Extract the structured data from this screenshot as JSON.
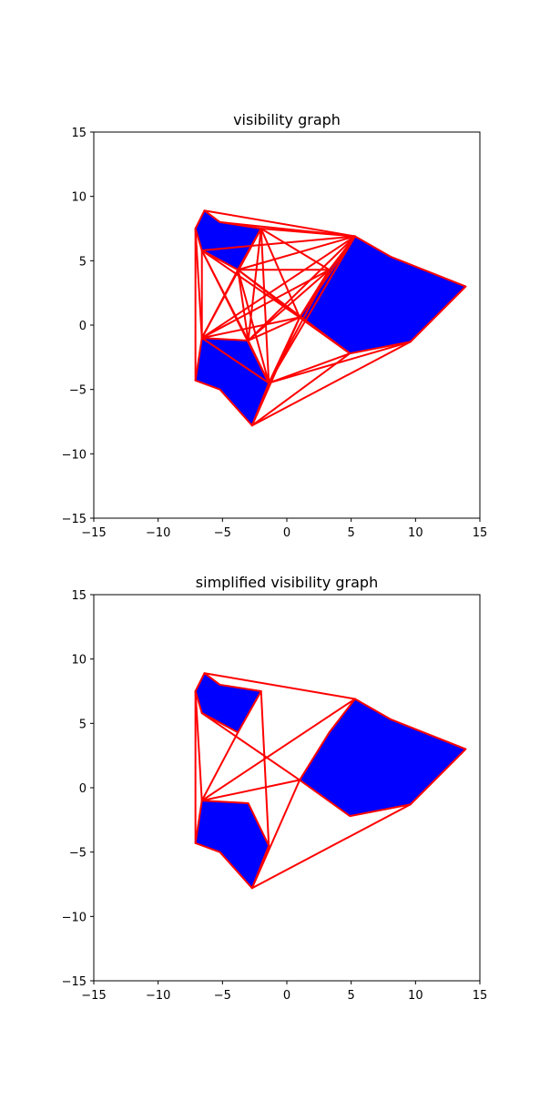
{
  "chart_data": [
    {
      "type": "polygon-graph",
      "title": "visibility graph",
      "xlim": [
        -15,
        15
      ],
      "ylim": [
        -15,
        15
      ],
      "xticks": [
        -15,
        -10,
        -5,
        0,
        5,
        10,
        15
      ],
      "yticks": [
        -15,
        -10,
        -5,
        0,
        5,
        10,
        15
      ],
      "xticklabels": [
        "−15",
        "−10",
        "−5",
        "0",
        "5",
        "10",
        "15"
      ],
      "yticklabels": [
        "−15",
        "−10",
        "−5",
        "0",
        "5",
        "10",
        "15"
      ],
      "obstacle_color": "#0000ff",
      "edge_color": "#ff0000",
      "obstacles": [
        [
          [
            -6.4,
            8.9
          ],
          [
            -5.2,
            8.0
          ],
          [
            -2.0,
            7.5
          ],
          [
            -3.8,
            4.3
          ],
          [
            -6.6,
            5.8
          ],
          [
            -7.1,
            7.5
          ]
        ],
        [
          [
            -6.6,
            -1.0
          ],
          [
            -3.0,
            -1.2
          ],
          [
            -1.4,
            -4.5
          ],
          [
            -2.7,
            -7.8
          ],
          [
            -5.2,
            -5.0
          ],
          [
            -7.1,
            -4.3
          ]
        ],
        [
          [
            1.0,
            0.6
          ],
          [
            3.3,
            4.3
          ],
          [
            5.3,
            6.9
          ],
          [
            8.1,
            5.3
          ],
          [
            13.9,
            3.0
          ],
          [
            9.6,
            -1.3
          ],
          [
            4.9,
            -2.2
          ]
        ]
      ],
      "edges": [
        [
          [
            -6.4,
            8.9
          ],
          [
            5.3,
            6.9
          ]
        ],
        [
          [
            -5.2,
            8.0
          ],
          [
            5.3,
            6.9
          ]
        ],
        [
          [
            -7.1,
            7.5
          ],
          [
            -7.1,
            -4.3
          ]
        ],
        [
          [
            -7.1,
            7.5
          ],
          [
            -6.6,
            -1.0
          ]
        ],
        [
          [
            -2.0,
            7.5
          ],
          [
            5.3,
            6.9
          ]
        ],
        [
          [
            -2.0,
            7.5
          ],
          [
            3.3,
            4.3
          ]
        ],
        [
          [
            -2.0,
            7.5
          ],
          [
            1.0,
            0.6
          ]
        ],
        [
          [
            -2.0,
            7.5
          ],
          [
            -3.0,
            -1.2
          ]
        ],
        [
          [
            -2.0,
            7.5
          ],
          [
            -1.4,
            -4.5
          ]
        ],
        [
          [
            -2.0,
            7.5
          ],
          [
            -6.6,
            -1.0
          ]
        ],
        [
          [
            -2.0,
            7.5
          ],
          [
            -3.8,
            4.3
          ]
        ],
        [
          [
            -6.6,
            5.8
          ],
          [
            -6.6,
            -1.0
          ]
        ],
        [
          [
            -6.6,
            5.8
          ],
          [
            -3.0,
            -1.2
          ]
        ],
        [
          [
            -6.6,
            5.8
          ],
          [
            -1.4,
            -4.5
          ]
        ],
        [
          [
            -6.6,
            5.8
          ],
          [
            1.0,
            0.6
          ]
        ],
        [
          [
            -6.6,
            5.8
          ],
          [
            5.3,
            6.9
          ]
        ],
        [
          [
            -6.6,
            5.8
          ],
          [
            -3.8,
            4.3
          ]
        ],
        [
          [
            -3.8,
            4.3
          ],
          [
            5.3,
            6.9
          ]
        ],
        [
          [
            -3.8,
            4.3
          ],
          [
            3.3,
            4.3
          ]
        ],
        [
          [
            -3.8,
            4.3
          ],
          [
            1.0,
            0.6
          ]
        ],
        [
          [
            -3.8,
            4.3
          ],
          [
            -3.0,
            -1.2
          ]
        ],
        [
          [
            -3.8,
            4.3
          ],
          [
            -1.4,
            -4.5
          ]
        ],
        [
          [
            -3.8,
            4.3
          ],
          [
            -6.6,
            -1.0
          ]
        ],
        [
          [
            -3.8,
            4.3
          ],
          [
            4.9,
            -2.2
          ]
        ],
        [
          [
            -6.6,
            -1.0
          ],
          [
            5.3,
            6.9
          ]
        ],
        [
          [
            -6.6,
            -1.0
          ],
          [
            3.3,
            4.3
          ]
        ],
        [
          [
            -6.6,
            -1.0
          ],
          [
            1.0,
            0.6
          ]
        ],
        [
          [
            -6.6,
            -1.0
          ],
          [
            -1.4,
            -4.5
          ]
        ],
        [
          [
            -3.0,
            -1.2
          ],
          [
            5.3,
            6.9
          ]
        ],
        [
          [
            -3.0,
            -1.2
          ],
          [
            3.3,
            4.3
          ]
        ],
        [
          [
            -3.0,
            -1.2
          ],
          [
            1.0,
            0.6
          ]
        ],
        [
          [
            -1.4,
            -4.5
          ],
          [
            1.0,
            0.6
          ]
        ],
        [
          [
            -1.4,
            -4.5
          ],
          [
            5.3,
            6.9
          ]
        ],
        [
          [
            -1.4,
            -4.5
          ],
          [
            4.9,
            -2.2
          ]
        ],
        [
          [
            -1.4,
            -4.5
          ],
          [
            9.6,
            -1.3
          ]
        ],
        [
          [
            -1.4,
            -4.5
          ],
          [
            3.3,
            4.3
          ]
        ],
        [
          [
            -2.7,
            -7.8
          ],
          [
            4.9,
            -2.2
          ]
        ],
        [
          [
            -2.7,
            -7.8
          ],
          [
            9.6,
            -1.3
          ]
        ],
        [
          [
            -2.7,
            -7.8
          ],
          [
            1.0,
            0.6
          ]
        ],
        [
          [
            1.0,
            0.6
          ],
          [
            4.9,
            -2.2
          ]
        ],
        [
          [
            1.0,
            0.6
          ],
          [
            5.3,
            6.9
          ]
        ],
        [
          [
            1.0,
            0.6
          ],
          [
            3.3,
            4.3
          ]
        ]
      ]
    },
    {
      "type": "polygon-graph",
      "title": "simplified visibility graph",
      "xlim": [
        -15,
        15
      ],
      "ylim": [
        -15,
        15
      ],
      "xticks": [
        -15,
        -10,
        -5,
        0,
        5,
        10,
        15
      ],
      "yticks": [
        -15,
        -10,
        -5,
        0,
        5,
        10,
        15
      ],
      "xticklabels": [
        "−15",
        "−10",
        "−5",
        "0",
        "5",
        "10",
        "15"
      ],
      "yticklabels": [
        "−15",
        "−10",
        "−5",
        "0",
        "5",
        "10",
        "15"
      ],
      "obstacle_color": "#0000ff",
      "edge_color": "#ff0000",
      "obstacles": [
        [
          [
            -6.4,
            8.9
          ],
          [
            -5.2,
            8.0
          ],
          [
            -2.0,
            7.5
          ],
          [
            -3.8,
            4.3
          ],
          [
            -6.6,
            5.8
          ],
          [
            -7.1,
            7.5
          ]
        ],
        [
          [
            -6.6,
            -1.0
          ],
          [
            -3.0,
            -1.2
          ],
          [
            -1.4,
            -4.5
          ],
          [
            -2.7,
            -7.8
          ],
          [
            -5.2,
            -5.0
          ],
          [
            -7.1,
            -4.3
          ]
        ],
        [
          [
            1.0,
            0.6
          ],
          [
            3.3,
            4.3
          ],
          [
            5.3,
            6.9
          ],
          [
            8.1,
            5.3
          ],
          [
            13.9,
            3.0
          ],
          [
            9.6,
            -1.3
          ],
          [
            4.9,
            -2.2
          ]
        ]
      ],
      "edges": [
        [
          [
            -6.4,
            8.9
          ],
          [
            5.3,
            6.9
          ]
        ],
        [
          [
            -7.1,
            7.5
          ],
          [
            -7.1,
            -4.3
          ]
        ],
        [
          [
            -7.1,
            7.5
          ],
          [
            -6.6,
            -1.0
          ]
        ],
        [
          [
            -2.0,
            7.5
          ],
          [
            -1.4,
            -4.5
          ]
        ],
        [
          [
            -3.8,
            4.3
          ],
          [
            -6.6,
            -1.0
          ]
        ],
        [
          [
            -6.6,
            5.8
          ],
          [
            1.0,
            0.6
          ]
        ],
        [
          [
            -6.6,
            -1.0
          ],
          [
            5.3,
            6.9
          ]
        ],
        [
          [
            -6.6,
            -1.0
          ],
          [
            1.0,
            0.6
          ]
        ],
        [
          [
            -2.7,
            -7.8
          ],
          [
            1.0,
            0.6
          ]
        ],
        [
          [
            -2.7,
            -7.8
          ],
          [
            9.6,
            -1.3
          ]
        ]
      ]
    }
  ]
}
